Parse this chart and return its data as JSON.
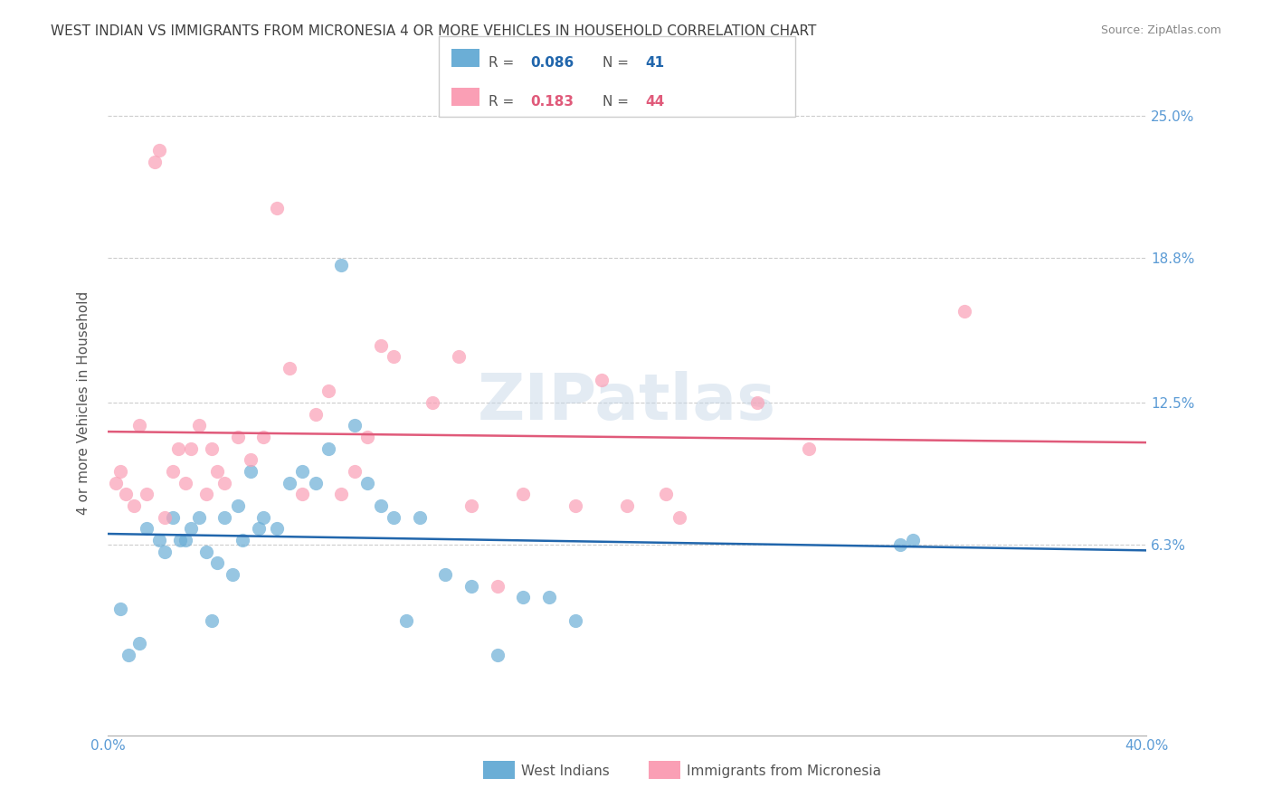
{
  "title": "WEST INDIAN VS IMMIGRANTS FROM MICRONESIA 4 OR MORE VEHICLES IN HOUSEHOLD CORRELATION CHART",
  "source": "Source: ZipAtlas.com",
  "xlabel_bottom": "",
  "ylabel": "4 or more Vehicles in Household",
  "xmin": 0.0,
  "xmax": 40.0,
  "ymin": -2.0,
  "ymax": 27.0,
  "yticks": [
    0.0,
    6.3,
    12.5,
    18.8,
    25.0
  ],
  "ytick_labels": [
    "",
    "6.3%",
    "12.5%",
    "18.8%",
    "25.0%"
  ],
  "xticks": [
    0.0,
    5.0,
    10.0,
    15.0,
    20.0,
    25.0,
    30.0,
    35.0,
    40.0
  ],
  "xtick_labels": [
    "0.0%",
    "",
    "",
    "",
    "",
    "",
    "",
    "",
    "40.0%"
  ],
  "watermark": "ZIPatlas",
  "legend_r1": "R =",
  "legend_v1": "0.086",
  "legend_n1": "N =",
  "legend_nv1": "41",
  "legend_r2": "R =",
  "legend_v2": "0.183",
  "legend_n2": "N =",
  "legend_nv2": "44",
  "blue_color": "#6baed6",
  "pink_color": "#fa9fb5",
  "blue_line_color": "#2166ac",
  "pink_line_color": "#e05a7a",
  "axis_label_color": "#5b9bd5",
  "title_color": "#404040",
  "legend_label1": "West Indians",
  "legend_label2": "Immigrants from Micronesia",
  "west_indians_x": [
    0.5,
    0.8,
    1.2,
    1.5,
    2.0,
    2.2,
    2.5,
    2.8,
    3.0,
    3.2,
    3.5,
    3.8,
    4.0,
    4.2,
    4.5,
    4.8,
    5.0,
    5.2,
    5.5,
    5.8,
    6.0,
    6.5,
    7.0,
    7.5,
    8.0,
    8.5,
    9.0,
    9.5,
    10.0,
    10.5,
    11.0,
    11.5,
    12.0,
    13.0,
    14.0,
    15.0,
    16.0,
    17.0,
    18.0,
    30.5,
    31.0
  ],
  "west_indians_y": [
    3.5,
    1.5,
    2.0,
    7.0,
    6.5,
    6.0,
    7.5,
    6.5,
    6.5,
    7.0,
    7.5,
    6.0,
    3.0,
    5.5,
    7.5,
    5.0,
    8.0,
    6.5,
    9.5,
    7.0,
    7.5,
    7.0,
    9.0,
    9.5,
    9.0,
    10.5,
    18.5,
    11.5,
    9.0,
    8.0,
    7.5,
    3.0,
    7.5,
    5.0,
    4.5,
    1.5,
    4.0,
    4.0,
    3.0,
    6.3,
    6.5
  ],
  "micronesia_x": [
    0.3,
    0.5,
    0.7,
    1.0,
    1.2,
    1.5,
    1.8,
    2.0,
    2.2,
    2.5,
    2.7,
    3.0,
    3.2,
    3.5,
    3.8,
    4.0,
    4.2,
    4.5,
    5.0,
    5.5,
    6.0,
    6.5,
    7.0,
    7.5,
    8.0,
    8.5,
    9.0,
    9.5,
    10.0,
    10.5,
    11.0,
    12.5,
    13.5,
    14.0,
    15.0,
    16.0,
    18.0,
    19.0,
    20.0,
    21.5,
    22.0,
    25.0,
    27.0,
    33.0
  ],
  "micronesia_y": [
    9.0,
    9.5,
    8.5,
    8.0,
    11.5,
    8.5,
    23.0,
    23.5,
    7.5,
    9.5,
    10.5,
    9.0,
    10.5,
    11.5,
    8.5,
    10.5,
    9.5,
    9.0,
    11.0,
    10.0,
    11.0,
    21.0,
    14.0,
    8.5,
    12.0,
    13.0,
    8.5,
    9.5,
    11.0,
    15.0,
    14.5,
    12.5,
    14.5,
    8.0,
    4.5,
    8.5,
    8.0,
    13.5,
    8.0,
    8.5,
    7.5,
    12.5,
    10.5,
    16.5
  ]
}
